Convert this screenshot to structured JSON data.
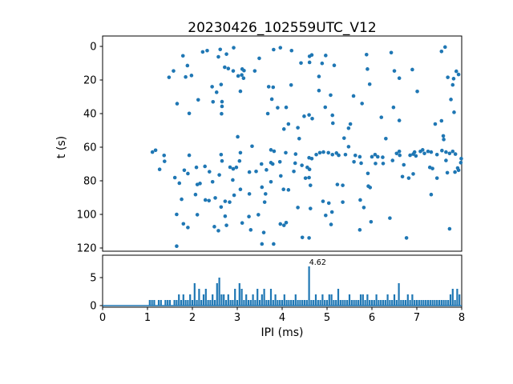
{
  "figure": {
    "title": "20230426_102559UTC_V12",
    "background_color": "#ffffff",
    "accent_color": "#1f77b4"
  },
  "chart_data": [
    {
      "type": "scatter",
      "title": "20230426_102559UTC_V12",
      "xlabel": "",
      "ylabel": "t (s)",
      "xlim": [
        0,
        8
      ],
      "ylim": [
        122,
        -6
      ],
      "y_inverted": true,
      "grid": false,
      "xticks": [
        0,
        1,
        2,
        3,
        4,
        5,
        6,
        7,
        8
      ],
      "yticks": [
        0,
        20,
        40,
        60,
        80,
        100,
        120
      ],
      "marker_color": "#1f77b4",
      "points": [
        [
          1.79,
          5.6
        ],
        [
          2.23,
          3.3
        ],
        [
          2.33,
          2.5
        ],
        [
          2.62,
          1.8
        ],
        [
          2.58,
          6.2
        ],
        [
          1.89,
          11.4
        ],
        [
          1.58,
          14.6
        ],
        [
          1.48,
          18.4
        ],
        [
          1.85,
          18.2
        ],
        [
          1.98,
          17.3
        ],
        [
          2.44,
          24.0
        ],
        [
          2.64,
          22.7
        ],
        [
          2.54,
          27.3
        ],
        [
          2.13,
          31.8
        ],
        [
          1.66,
          34.1
        ],
        [
          2.46,
          33.0
        ],
        [
          1.93,
          39.9
        ],
        [
          2.66,
          32.9
        ],
        [
          2.66,
          35.7
        ],
        [
          2.65,
          40.1
        ],
        [
          2.92,
          0.8
        ],
        [
          2.76,
          4.6
        ],
        [
          3.81,
          1.9
        ],
        [
          3.96,
          0.8
        ],
        [
          4.21,
          2.5
        ],
        [
          4.61,
          5.9
        ],
        [
          4.66,
          5.1
        ],
        [
          4.97,
          5.4
        ],
        [
          3.49,
          7.1
        ],
        [
          4.42,
          9.9
        ],
        [
          4.61,
          9.5
        ],
        [
          4.89,
          10.1
        ],
        [
          5.16,
          11.3
        ],
        [
          2.72,
          12.4
        ],
        [
          2.8,
          13.2
        ],
        [
          2.91,
          14.6
        ],
        [
          3.11,
          13.5
        ],
        [
          3.15,
          14.4
        ],
        [
          3.39,
          14.6
        ],
        [
          3.02,
          17.6
        ],
        [
          3.1,
          17.0
        ],
        [
          3.14,
          18.9
        ],
        [
          4.82,
          17.9
        ],
        [
          3.07,
          26.7
        ],
        [
          3.7,
          24.0
        ],
        [
          3.8,
          24.3
        ],
        [
          4.2,
          23.0
        ],
        [
          4.82,
          26.3
        ],
        [
          5.08,
          29.0
        ],
        [
          3.77,
          31.4
        ],
        [
          3.9,
          36.5
        ],
        [
          4.09,
          36.3
        ],
        [
          3.68,
          40.0
        ],
        [
          4.96,
          36.2
        ],
        [
          4.49,
          41.6
        ],
        [
          4.6,
          40.8
        ],
        [
          4.67,
          43.0
        ],
        [
          5.12,
          41.0
        ],
        [
          5.13,
          45.7
        ],
        [
          4.14,
          46.2
        ],
        [
          4.04,
          49.2
        ],
        [
          4.35,
          48.4
        ],
        [
          3.01,
          53.8
        ],
        [
          4.38,
          54.9
        ],
        [
          5.88,
          4.9
        ],
        [
          6.43,
          3.7
        ],
        [
          7.55,
          3.0
        ],
        [
          7.63,
          0.4
        ],
        [
          5.9,
          13.5
        ],
        [
          6.5,
          14.6
        ],
        [
          6.9,
          13.8
        ],
        [
          6.61,
          18.9
        ],
        [
          7.69,
          18.4
        ],
        [
          7.82,
          19.2
        ],
        [
          7.88,
          14.8
        ],
        [
          7.93,
          16.7
        ],
        [
          7.8,
          22.9
        ],
        [
          5.95,
          22.5
        ],
        [
          5.59,
          29.5
        ],
        [
          7.01,
          26.8
        ],
        [
          5.78,
          34.0
        ],
        [
          7.76,
          31.6
        ],
        [
          6.48,
          36.3
        ],
        [
          7.83,
          39.2
        ],
        [
          6.21,
          42.2
        ],
        [
          6.61,
          44.1
        ],
        [
          7.41,
          46.2
        ],
        [
          7.55,
          44.3
        ],
        [
          5.52,
          46.2
        ],
        [
          5.48,
          48.7
        ],
        [
          5.38,
          54.6
        ],
        [
          6.31,
          54.9
        ],
        [
          7.59,
          53.3
        ],
        [
          7.6,
          55.4
        ],
        [
          1.11,
          62.9
        ],
        [
          1.18,
          61.8
        ],
        [
          1.37,
          64.9
        ],
        [
          1.93,
          64.8
        ],
        [
          1.38,
          68.4
        ],
        [
          1.27,
          73.2
        ],
        [
          2.09,
          72.0
        ],
        [
          2.28,
          71.4
        ],
        [
          1.82,
          73.7
        ],
        [
          1.9,
          75.7
        ],
        [
          1.61,
          78.1
        ],
        [
          1.71,
          81.4
        ],
        [
          2.11,
          82.2
        ],
        [
          2.17,
          81.6
        ],
        [
          2.38,
          74.6
        ],
        [
          2.6,
          76.5
        ],
        [
          2.64,
          64.4
        ],
        [
          2.66,
          68.2
        ],
        [
          2.45,
          80.6
        ],
        [
          2.07,
          88.2
        ],
        [
          1.76,
          91.0
        ],
        [
          2.29,
          91.4
        ],
        [
          2.37,
          91.8
        ],
        [
          2.51,
          90.2
        ],
        [
          2.64,
          95.6
        ],
        [
          1.65,
          100.0
        ],
        [
          2.11,
          100.2
        ],
        [
          1.8,
          105.6
        ],
        [
          1.9,
          107.8
        ],
        [
          2.49,
          107.3
        ],
        [
          2.58,
          109.7
        ],
        [
          1.65,
          118.9
        ],
        [
          3.07,
          63.3
        ],
        [
          3.33,
          59.4
        ],
        [
          3.75,
          61.6
        ],
        [
          3.82,
          62.4
        ],
        [
          4.08,
          63.3
        ],
        [
          4.3,
          64.1
        ],
        [
          4.6,
          66.3
        ],
        [
          4.66,
          66.8
        ],
        [
          4.76,
          64.4
        ],
        [
          4.84,
          63.3
        ],
        [
          4.92,
          62.9
        ],
        [
          5.03,
          63.3
        ],
        [
          5.12,
          64.4
        ],
        [
          5.21,
          63.5
        ],
        [
          5.26,
          64.8
        ],
        [
          4.29,
          69.5
        ],
        [
          4.44,
          70.8
        ],
        [
          4.56,
          72.0
        ],
        [
          4.61,
          73.2
        ],
        [
          2.84,
          71.9
        ],
        [
          2.91,
          72.9
        ],
        [
          2.98,
          72.0
        ],
        [
          3.05,
          68.2
        ],
        [
          3.27,
          74.8
        ],
        [
          3.42,
          74.4
        ],
        [
          3.54,
          70.0
        ],
        [
          3.65,
          73.5
        ],
        [
          3.75,
          69.2
        ],
        [
          3.79,
          70.0
        ],
        [
          3.95,
          68.7
        ],
        [
          3.97,
          77.1
        ],
        [
          4.26,
          74.4
        ],
        [
          4.52,
          78.4
        ],
        [
          4.6,
          78.1
        ],
        [
          4.63,
          82.7
        ],
        [
          2.9,
          79.5
        ],
        [
          3.07,
          85.1
        ],
        [
          3.27,
          87.8
        ],
        [
          2.93,
          88.6
        ],
        [
          2.83,
          92.7
        ],
        [
          3.55,
          83.8
        ],
        [
          3.75,
          80.6
        ],
        [
          3.63,
          87.8
        ],
        [
          4.03,
          85.1
        ],
        [
          4.14,
          85.4
        ],
        [
          3.61,
          92.7
        ],
        [
          2.73,
          92.2
        ],
        [
          2.73,
          101.1
        ],
        [
          2.76,
          106.5
        ],
        [
          3.26,
          101.3
        ],
        [
          3.11,
          105.1
        ],
        [
          3.3,
          109.2
        ],
        [
          3.47,
          100.2
        ],
        [
          3.59,
          110.8
        ],
        [
          3.55,
          117.6
        ],
        [
          3.81,
          117.6
        ],
        [
          3.96,
          105.7
        ],
        [
          4.04,
          106.5
        ],
        [
          4.09,
          104.9
        ],
        [
          4.35,
          95.9
        ],
        [
          4.63,
          96.5
        ],
        [
          4.45,
          113.7
        ],
        [
          4.6,
          114.0
        ],
        [
          4.91,
          92.2
        ],
        [
          5.04,
          93.3
        ],
        [
          4.97,
          100.6
        ],
        [
          5.11,
          98.6
        ],
        [
          5.09,
          106.0
        ],
        [
          5.35,
          92.7
        ],
        [
          5.23,
          82.2
        ],
        [
          5.35,
          82.7
        ],
        [
          5.48,
          59.7
        ],
        [
          5.41,
          64.4
        ],
        [
          5.63,
          64.9
        ],
        [
          5.73,
          65.7
        ],
        [
          5.6,
          68.7
        ],
        [
          5.76,
          69.5
        ],
        [
          6.0,
          65.7
        ],
        [
          6.07,
          64.4
        ],
        [
          6.13,
          65.7
        ],
        [
          6.08,
          69.7
        ],
        [
          6.24,
          66.0
        ],
        [
          6.25,
          69.7
        ],
        [
          5.91,
          75.6
        ],
        [
          6.46,
          67.9
        ],
        [
          6.55,
          63.7
        ],
        [
          6.61,
          62.5
        ],
        [
          6.62,
          64.8
        ],
        [
          6.71,
          70.5
        ],
        [
          6.85,
          64.8
        ],
        [
          6.92,
          64.1
        ],
        [
          6.95,
          62.9
        ],
        [
          6.98,
          65.2
        ],
        [
          7.08,
          62.5
        ],
        [
          7.13,
          61.6
        ],
        [
          7.17,
          63.7
        ],
        [
          7.25,
          62.5
        ],
        [
          7.32,
          62.9
        ],
        [
          7.45,
          64.4
        ],
        [
          7.56,
          62.0
        ],
        [
          7.65,
          62.9
        ],
        [
          7.73,
          63.7
        ],
        [
          7.8,
          62.5
        ],
        [
          7.86,
          64.1
        ],
        [
          7.65,
          67.9
        ],
        [
          7.91,
          72.4
        ],
        [
          7.93,
          73.7
        ],
        [
          7.98,
          69.2
        ],
        [
          7.99,
          66.8
        ],
        [
          7.29,
          72.0
        ],
        [
          7.35,
          72.7
        ],
        [
          6.68,
          77.5
        ],
        [
          6.82,
          78.4
        ],
        [
          6.92,
          75.9
        ],
        [
          7.45,
          78.4
        ],
        [
          7.68,
          75.2
        ],
        [
          7.85,
          74.8
        ],
        [
          5.92,
          83.2
        ],
        [
          5.96,
          84.0
        ],
        [
          7.32,
          88.2
        ],
        [
          5.74,
          91.4
        ],
        [
          5.82,
          95.9
        ],
        [
          6.4,
          102.2
        ],
        [
          5.98,
          104.4
        ],
        [
          5.73,
          109.2
        ],
        [
          6.77,
          114.0
        ],
        [
          7.73,
          108.6
        ]
      ]
    },
    {
      "type": "bar",
      "xlabel": "IPI (ms)",
      "ylabel": "",
      "xlim": [
        0,
        8
      ],
      "ylim": [
        -0.3,
        9.0
      ],
      "grid": false,
      "xticks": [
        0,
        1,
        2,
        3,
        4,
        5,
        6,
        7,
        8
      ],
      "yticks": [
        0,
        5
      ],
      "bar_color": "#1f77b4",
      "bin_start": 1.0,
      "bin_step": 0.05,
      "values": [
        0,
        1,
        1,
        1,
        0,
        1,
        1,
        0,
        1,
        1,
        1,
        0,
        1,
        1,
        2,
        1,
        2,
        1,
        1,
        2,
        1,
        4,
        1,
        3,
        1,
        2,
        3,
        1,
        1,
        2,
        1,
        4,
        5,
        2,
        2,
        1,
        2,
        1,
        1,
        3,
        1,
        4,
        3,
        1,
        2,
        1,
        1,
        2,
        1,
        3,
        1,
        2,
        3,
        1,
        1,
        3,
        1,
        2,
        1,
        1,
        1,
        2,
        1,
        1,
        1,
        1,
        2,
        1,
        1,
        1,
        1,
        1,
        7,
        1,
        1,
        2,
        1,
        1,
        2,
        1,
        1,
        2,
        2,
        1,
        1,
        3,
        1,
        1,
        1,
        1,
        2,
        1,
        1,
        1,
        1,
        2,
        2,
        1,
        2,
        1,
        1,
        1,
        2,
        1,
        1,
        1,
        1,
        2,
        1,
        1,
        2,
        1,
        4,
        1,
        1,
        1,
        2,
        1,
        2,
        1,
        1,
        1,
        1,
        1,
        1,
        1,
        1,
        1,
        1,
        1,
        1,
        1,
        1,
        1,
        1,
        2,
        3,
        1,
        3,
        2
      ],
      "annotation": {
        "x": 4.62,
        "value": 7,
        "label": "4.62"
      }
    }
  ]
}
